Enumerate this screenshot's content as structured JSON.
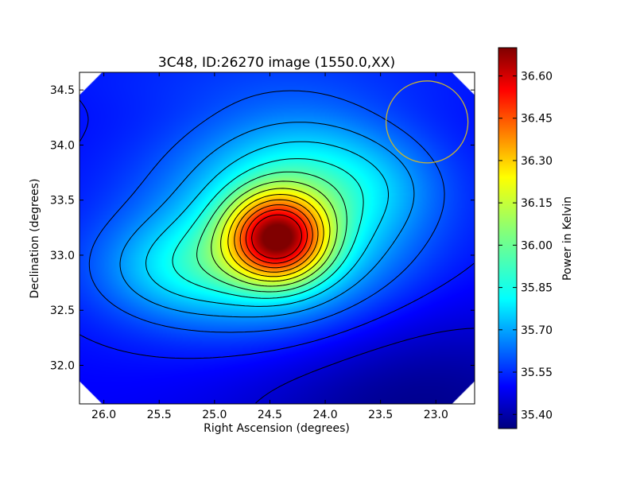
{
  "chart_data": {
    "type": "heatmap",
    "title": "3C48, ID:26270 image (1550.0,XX)",
    "xlabel": "Right Ascension (degrees)",
    "ylabel": "Declination (degrees)",
    "xlim": [
      26.22,
      22.65
    ],
    "ylim": [
      31.65,
      34.66
    ],
    "x_ticks": [
      "26.0",
      "25.5",
      "25.0",
      "24.5",
      "24.0",
      "23.5",
      "23.0"
    ],
    "y_ticks": [
      "32.0",
      "32.5",
      "33.0",
      "33.5",
      "34.0",
      "34.5"
    ],
    "colorbar": {
      "label": "Power in Kelvin",
      "range": [
        35.35,
        36.7
      ],
      "ticks": [
        "35.40",
        "35.55",
        "35.70",
        "35.85",
        "36.00",
        "36.15",
        "36.30",
        "36.45",
        "36.60"
      ],
      "colormap": "jet"
    },
    "peak": {
      "ra": 24.43,
      "dec": 33.16,
      "value": 36.68
    },
    "secondary_feature": {
      "ra": 25.3,
      "dec": 32.87
    },
    "beam_circle": {
      "ra": 23.08,
      "dec": 34.21,
      "radius_deg": 0.37,
      "color": "#c8b432"
    },
    "contour_color": "#000000",
    "grid": false
  }
}
